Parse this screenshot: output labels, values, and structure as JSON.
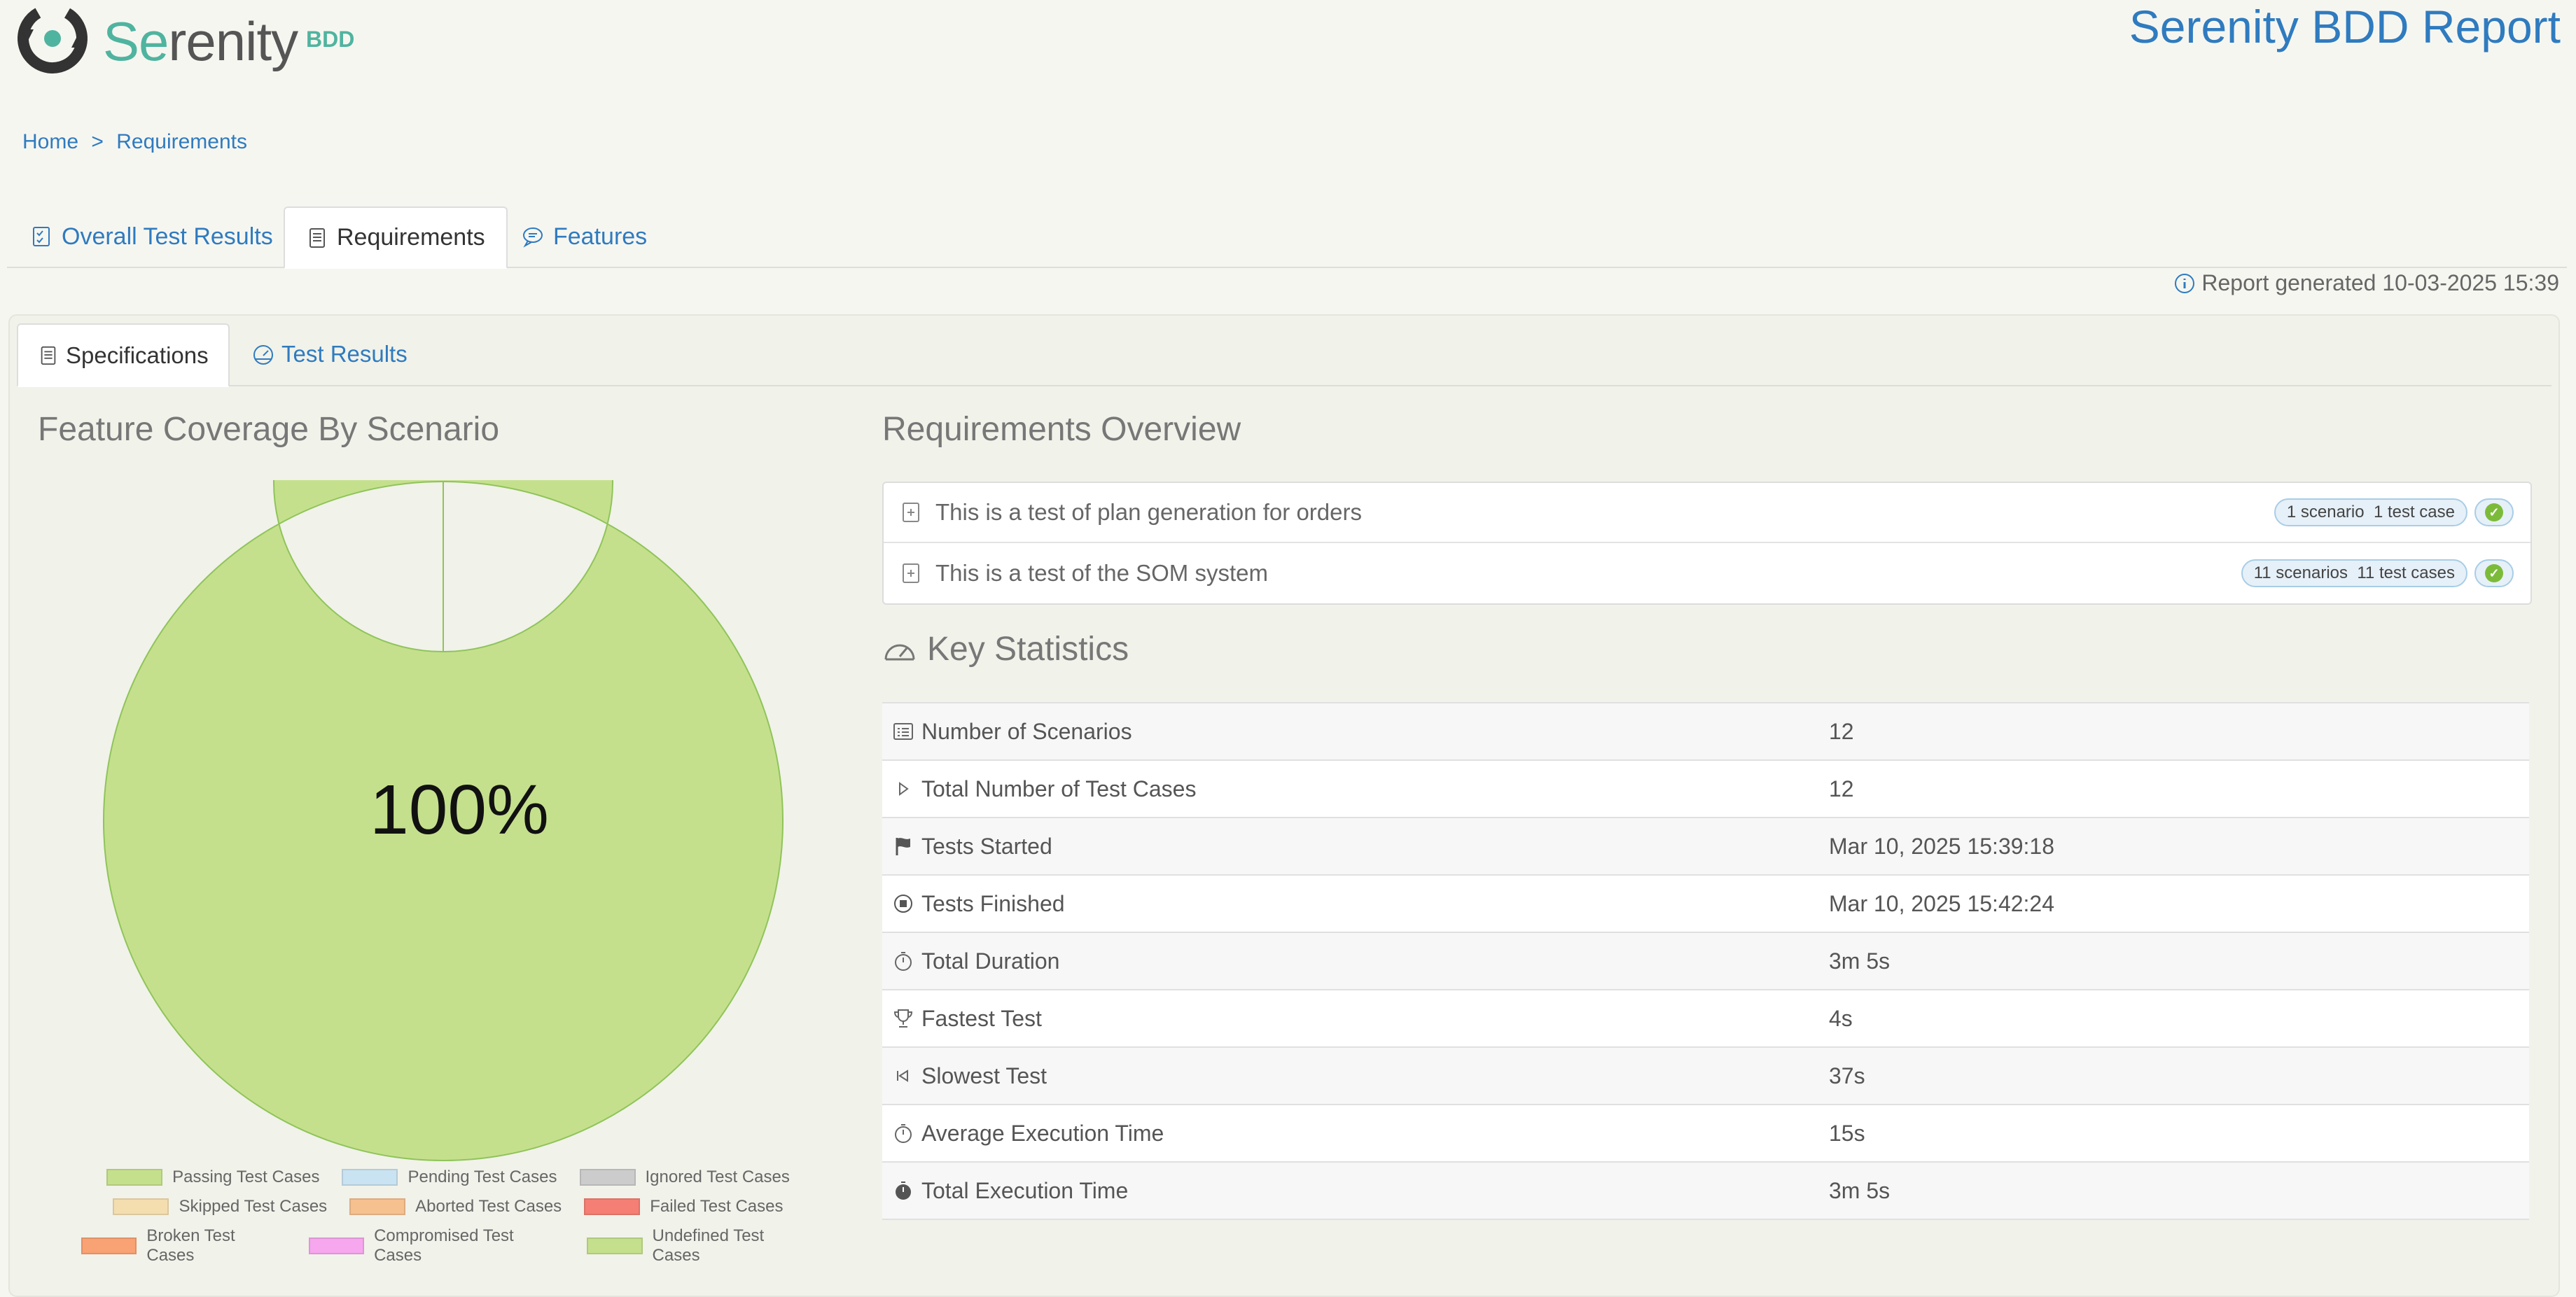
{
  "header": {
    "logo_prefix": "Se",
    "logo_suffix": "renity",
    "logo_bdd": "BDD",
    "report_title": "Serenity BDD Report"
  },
  "breadcrumb": {
    "home": "Home",
    "separator": ">",
    "current": "Requirements"
  },
  "main_tabs": [
    {
      "label": "Overall Test Results",
      "icon": "checklist-icon"
    },
    {
      "label": "Requirements",
      "icon": "document-icon",
      "active": true
    },
    {
      "label": "Features",
      "icon": "comment-icon"
    }
  ],
  "report_generated": "Report generated 10-03-2025 15:39",
  "sub_tabs": [
    {
      "label": "Specifications",
      "icon": "document-icon",
      "active": true
    },
    {
      "label": "Test Results",
      "icon": "gauge-icon"
    }
  ],
  "coverage": {
    "title": "Feature Coverage By Scenario",
    "center_label": "100%"
  },
  "chart_data": {
    "type": "pie",
    "categories": [
      "Passing Test Cases",
      "Pending Test Cases",
      "Ignored Test Cases",
      "Skipped Test Cases",
      "Aborted Test Cases",
      "Failed Test Cases",
      "Broken Test Cases",
      "Compromised Test Cases",
      "Undefined Test Cases"
    ],
    "values": [
      100,
      0,
      0,
      0,
      0,
      0,
      0,
      0,
      0
    ],
    "colors": [
      "#c5e08d",
      "#c9e3f2",
      "#cccccc",
      "#f4deb0",
      "#f6c08f",
      "#f57f74",
      "#f9a273",
      "#f6a7ee",
      "#c5e08d"
    ],
    "legend_placement": "bottom"
  },
  "requirements": {
    "title": "Requirements Overview",
    "items": [
      {
        "text": "This is a test of plan generation for orders",
        "scenarios": "1 scenario",
        "test_cases": "1 test case"
      },
      {
        "text": "This is a test of the SOM system",
        "scenarios": "11 scenarios",
        "test_cases": "11 test cases"
      }
    ]
  },
  "key_statistics": {
    "title": "Key Statistics",
    "rows": [
      {
        "label": "Number of Scenarios",
        "value": "12",
        "icon": "list-icon"
      },
      {
        "label": "Total Number of Test Cases",
        "value": "12",
        "icon": "play-icon"
      },
      {
        "label": "Tests Started",
        "value": "Mar 10, 2025 15:39:18",
        "icon": "flag-icon"
      },
      {
        "label": "Tests Finished",
        "value": "Mar 10, 2025 15:42:24",
        "icon": "stop-icon"
      },
      {
        "label": "Total Duration",
        "value": "3m 5s",
        "icon": "stopwatch-icon"
      },
      {
        "label": "Fastest Test",
        "value": "4s",
        "icon": "trophy-icon"
      },
      {
        "label": "Slowest Test",
        "value": "37s",
        "icon": "rewind-icon"
      },
      {
        "label": "Average Execution Time",
        "value": "15s",
        "icon": "stopwatch-icon"
      },
      {
        "label": "Total Execution Time",
        "value": "3m 5s",
        "icon": "stopwatch-filled-icon"
      }
    ]
  }
}
